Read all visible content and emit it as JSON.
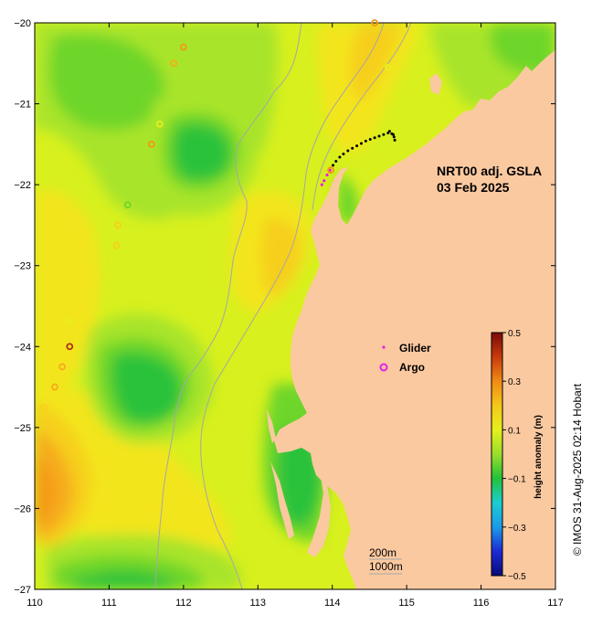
{
  "map": {
    "title_line1": "NRT00 adj. GSLA",
    "title_line2": "03 Feb 2025",
    "x_range": [
      110,
      117
    ],
    "y_range": [
      -27,
      -20
    ],
    "x_ticks": [
      {
        "v": 110,
        "label": "110"
      },
      {
        "v": 111,
        "label": "111"
      },
      {
        "v": 112,
        "label": "112"
      },
      {
        "v": 113,
        "label": "113"
      },
      {
        "v": 114,
        "label": "114"
      },
      {
        "v": 115,
        "label": "115"
      },
      {
        "v": 116,
        "label": "116"
      },
      {
        "v": 117,
        "label": "117"
      }
    ],
    "y_ticks": [
      {
        "v": -20,
        "label": "−20"
      },
      {
        "v": -21,
        "label": "−21"
      },
      {
        "v": -22,
        "label": "−22"
      },
      {
        "v": -23,
        "label": "−23"
      },
      {
        "v": -24,
        "label": "−24"
      },
      {
        "v": -25,
        "label": "−25"
      },
      {
        "v": -26,
        "label": "−26"
      },
      {
        "v": -27,
        "label": "−27"
      }
    ],
    "colors": {
      "land": "#fbc9a0",
      "base_field": "#d7f01e",
      "green_light": "#a8e42c",
      "green_mid": "#6ed62c",
      "green_dark": "#2cc23a",
      "yellow": "#f3e51b",
      "yellow_orange": "#f6cf1a",
      "orange": "#f6ab1c",
      "orange_dark": "#f49718",
      "contour": "#a6a6a6",
      "glider": "#e81ee8",
      "track": "#000000"
    }
  },
  "legend": {
    "glider_label": "Glider",
    "argo_label": "Argo"
  },
  "depth_labels": {
    "line1": "200m",
    "line2": "1000m"
  },
  "colorbar": {
    "label": "height anomaly (m)",
    "range": [
      -0.5,
      0.5
    ],
    "ticks": [
      {
        "v": 0.5,
        "label": "0.5"
      },
      {
        "v": 0.3,
        "label": "0.3"
      },
      {
        "v": 0.1,
        "label": "0.1"
      },
      {
        "v": -0.1,
        "label": "−0.1"
      },
      {
        "v": -0.3,
        "label": "−0.3"
      },
      {
        "v": -0.5,
        "label": "−0.5"
      }
    ],
    "stops": [
      "#0a0a7a",
      "#1c2bd6",
      "#1c9ae8",
      "#1ccdd2",
      "#22c23a",
      "#9ade2a",
      "#e6ef1c",
      "#f5c71a",
      "#f08a14",
      "#c83a0c",
      "#7a0a0a"
    ]
  },
  "argo_floats": [
    {
      "lon": 110.47,
      "lat": -24.0,
      "color": "#b03010"
    },
    {
      "lon": 110.12,
      "lat": -24.75,
      "color": "#f6cf1a"
    },
    {
      "lon": 110.27,
      "lat": -24.5,
      "color": "#f6ab1c"
    },
    {
      "lon": 110.37,
      "lat": -24.25,
      "color": "#f6ab1c"
    },
    {
      "lon": 110.47,
      "lat": -23.68,
      "color": "#e6ef1c"
    },
    {
      "lon": 111.1,
      "lat": -22.75,
      "color": "#f6cf1a"
    },
    {
      "lon": 111.12,
      "lat": -22.5,
      "color": "#f6cf1a"
    },
    {
      "lon": 111.25,
      "lat": -22.25,
      "color": "#6ed62c"
    },
    {
      "lon": 111.57,
      "lat": -21.5,
      "color": "#f49718"
    },
    {
      "lon": 111.68,
      "lat": -21.25,
      "color": "#e6ef1c"
    },
    {
      "lon": 111.87,
      "lat": -20.5,
      "color": "#f6ab1c"
    },
    {
      "lon": 112.0,
      "lat": -20.3,
      "color": "#f49718"
    },
    {
      "lon": 114.57,
      "lat": -20.0,
      "color": "#f49718"
    },
    {
      "lon": 113.98,
      "lat": -21.82,
      "color": "#f49718"
    },
    {
      "lon": 114.75,
      "lat": -20.55,
      "color": "#e6ef1c"
    }
  ],
  "glider_track": [
    [
      113.86,
      -22.0
    ],
    [
      113.89,
      -21.95
    ],
    [
      113.93,
      -21.88
    ],
    [
      113.97,
      -21.82
    ],
    [
      114.01,
      -21.76
    ],
    [
      114.05,
      -21.71
    ],
    [
      114.1,
      -21.66
    ],
    [
      114.15,
      -21.62
    ],
    [
      114.21,
      -21.58
    ],
    [
      114.27,
      -21.55
    ],
    [
      114.33,
      -21.52
    ],
    [
      114.39,
      -21.49
    ],
    [
      114.45,
      -21.46
    ],
    [
      114.51,
      -21.44
    ],
    [
      114.57,
      -21.42
    ],
    [
      114.63,
      -21.4
    ],
    [
      114.69,
      -21.38
    ],
    [
      114.75,
      -21.36
    ],
    [
      114.8,
      -21.37
    ],
    [
      114.83,
      -21.41
    ],
    [
      114.84,
      -21.45
    ],
    [
      114.82,
      -21.38
    ],
    [
      114.77,
      -21.34
    ]
  ]
}
